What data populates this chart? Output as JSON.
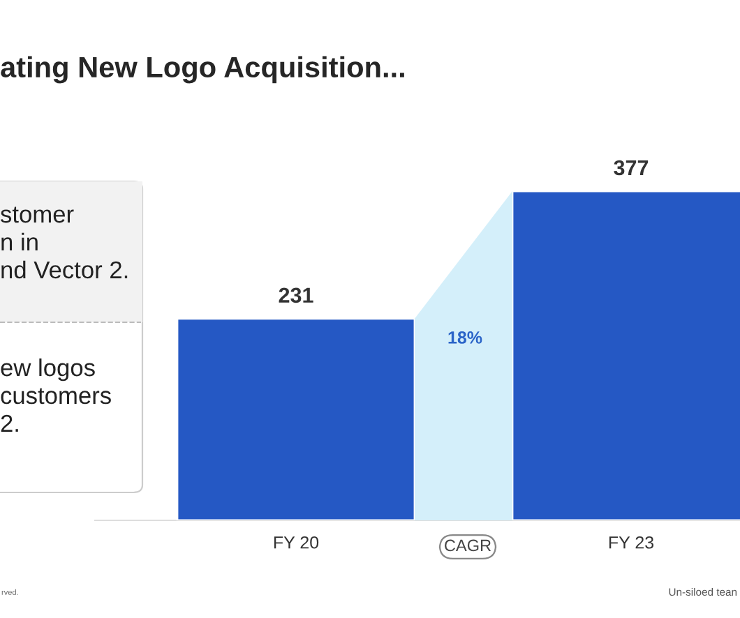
{
  "chart_data": {
    "type": "bar",
    "title": "ating New Logo Acquisition...",
    "categories": [
      "FY 20",
      "FY 23"
    ],
    "values": [
      231,
      377
    ],
    "color": "#2558c4",
    "data_labels": true,
    "annotations": [
      "stomer\nn in\nnd Vector 2.",
      "ew logos\ncustomers\n2.",
      "18%",
      "CAGR",
      "rved.",
      "Un-siloed tean"
    ]
  }
}
